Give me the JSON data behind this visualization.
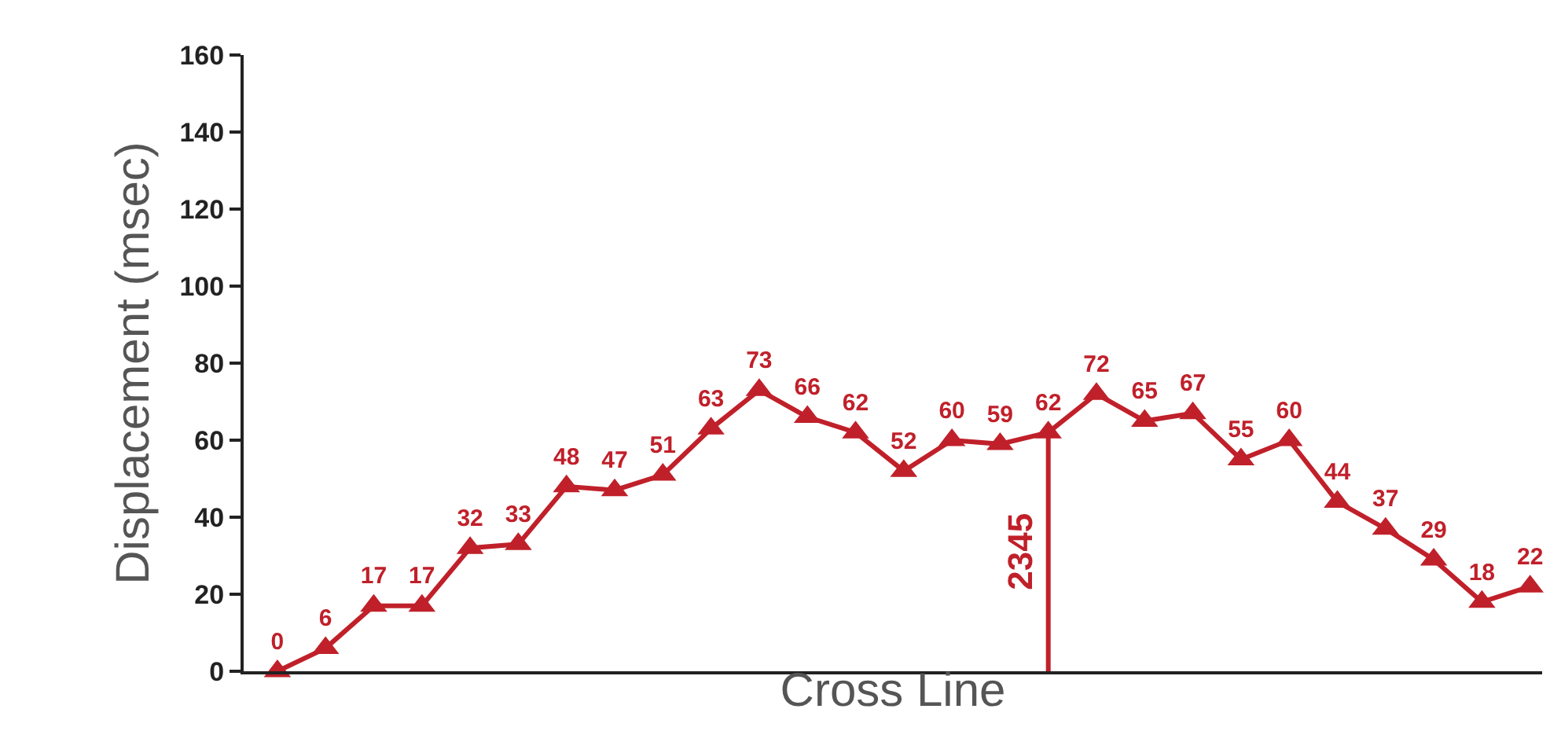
{
  "chart_data": {
    "type": "line",
    "xlabel": "Cross Line",
    "ylabel": "Displacement (msec)",
    "categories": [
      null,
      null,
      null,
      null,
      null,
      null,
      null,
      null,
      null,
      null,
      null,
      null,
      null,
      null,
      null,
      null,
      null,
      null,
      null,
      null,
      null,
      null,
      null,
      null,
      null,
      null,
      null
    ],
    "series": [
      {
        "color": "#c0202a",
        "values": [
          0,
          6,
          17,
          17,
          32,
          33,
          48,
          47,
          51,
          63,
          73,
          66,
          62,
          52,
          60,
          59,
          62,
          72,
          65,
          67,
          55,
          60,
          44,
          37,
          29,
          18,
          22
        ]
      }
    ],
    "ylim": [
      0,
      160
    ],
    "yticks": [
      0,
      20,
      40,
      60,
      80,
      100,
      120,
      140,
      160
    ],
    "tick_labels": "y",
    "annotations": [
      "2345"
    ],
    "data_labels": true,
    "marker": "triangle",
    "line_style": "solid"
  }
}
